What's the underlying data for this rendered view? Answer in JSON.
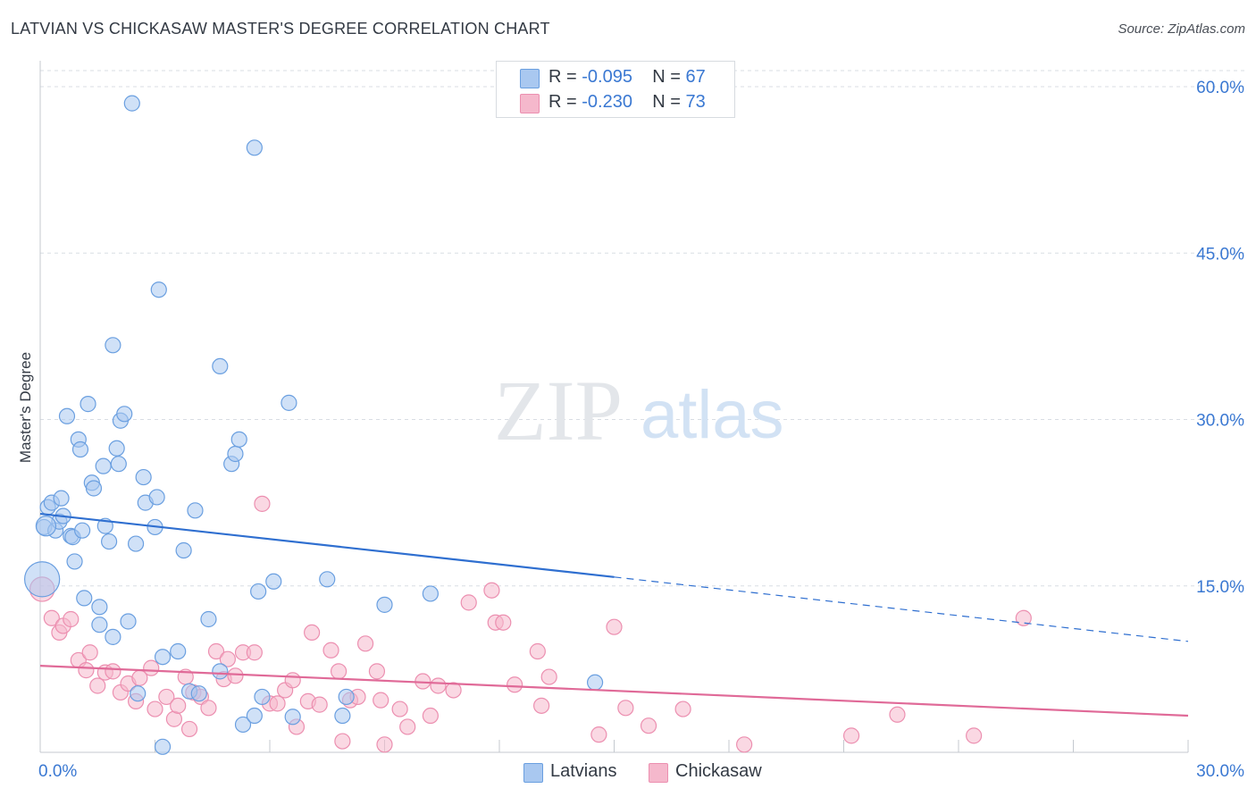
{
  "header": {
    "title": "LATVIAN VS CHICKASAW MASTER'S DEGREE CORRELATION CHART",
    "source": "Source: ZipAtlas.com"
  },
  "legend": {
    "rows": [
      {
        "r_label": "R =",
        "r_value": "-0.095",
        "n_label": "N =",
        "n_value": "67"
      },
      {
        "r_label": "R =",
        "r_value": "-0.230",
        "n_label": "N =",
        "n_value": "73"
      }
    ],
    "series_names": [
      "Latvians",
      "Chickasaw"
    ]
  },
  "watermark": {
    "zip": "ZIP",
    "atlas": "atlas"
  },
  "colors": {
    "latvians_fill": "#a9c8f0",
    "latvians_stroke": "#6a9fe0",
    "latvians_line": "#2f6fd0",
    "chickasaw_fill": "#f5b8cc",
    "chickasaw_stroke": "#ec8fb0",
    "chickasaw_line": "#e06a98",
    "grid": "#d8dde3",
    "axis_text": "#3a78d2"
  },
  "chart_data": {
    "type": "scatter",
    "title": "LATVIAN VS CHICKASAW MASTER'S DEGREE CORRELATION CHART",
    "xlabel": "",
    "ylabel": "Master's Degree",
    "xlim": [
      0,
      30
    ],
    "ylim": [
      0,
      60
    ],
    "x_tick_labels": [
      "0.0%",
      "30.0%"
    ],
    "y_ticks": [
      15,
      30,
      45,
      60
    ],
    "y_tick_labels": [
      "15.0%",
      "30.0%",
      "45.0%",
      "60.0%"
    ],
    "series": [
      {
        "name": "Latvians",
        "r": -0.095,
        "n": 67,
        "trend": {
          "x0": 0,
          "y0": 21.5,
          "x1": 15,
          "y1": 15.8,
          "dashed_to_x": 30,
          "dashed_to_y": 10.0
        },
        "points": [
          [
            0.1,
            20.3
          ],
          [
            0.2,
            22.1
          ],
          [
            0.3,
            22.5
          ],
          [
            0.4,
            20.0
          ],
          [
            0.5,
            20.8
          ],
          [
            0.55,
            22.9
          ],
          [
            0.6,
            21.3
          ],
          [
            0.7,
            30.3
          ],
          [
            0.8,
            19.5
          ],
          [
            0.85,
            19.4
          ],
          [
            0.9,
            17.2
          ],
          [
            1.0,
            28.2
          ],
          [
            1.05,
            27.3
          ],
          [
            1.1,
            20.0
          ],
          [
            1.15,
            13.9
          ],
          [
            1.25,
            31.4
          ],
          [
            1.35,
            24.3
          ],
          [
            1.4,
            23.8
          ],
          [
            1.55,
            11.5
          ],
          [
            1.55,
            13.1
          ],
          [
            1.65,
            25.8
          ],
          [
            1.7,
            20.4
          ],
          [
            1.8,
            19.0
          ],
          [
            1.9,
            10.4
          ],
          [
            1.9,
            36.7
          ],
          [
            2.0,
            27.4
          ],
          [
            2.05,
            26.0
          ],
          [
            2.1,
            29.9
          ],
          [
            2.2,
            30.5
          ],
          [
            2.3,
            11.8
          ],
          [
            2.4,
            58.5
          ],
          [
            2.5,
            18.8
          ],
          [
            2.55,
            5.3
          ],
          [
            2.7,
            24.8
          ],
          [
            2.75,
            22.5
          ],
          [
            3.0,
            20.3
          ],
          [
            3.05,
            23.0
          ],
          [
            3.1,
            41.7
          ],
          [
            3.2,
            8.6
          ],
          [
            3.2,
            0.5
          ],
          [
            3.6,
            9.1
          ],
          [
            3.75,
            18.2
          ],
          [
            3.9,
            5.5
          ],
          [
            4.05,
            21.8
          ],
          [
            4.15,
            5.3
          ],
          [
            4.4,
            12.0
          ],
          [
            4.7,
            34.8
          ],
          [
            4.7,
            7.3
          ],
          [
            5.0,
            26.0
          ],
          [
            5.1,
            26.9
          ],
          [
            5.2,
            28.2
          ],
          [
            5.3,
            2.5
          ],
          [
            5.6,
            54.5
          ],
          [
            5.6,
            3.3
          ],
          [
            5.7,
            14.5
          ],
          [
            5.8,
            5.0
          ],
          [
            6.1,
            15.4
          ],
          [
            6.5,
            31.5
          ],
          [
            6.6,
            3.2
          ],
          [
            7.5,
            15.6
          ],
          [
            7.9,
            3.3
          ],
          [
            8.0,
            5.0
          ],
          [
            9.0,
            13.3
          ],
          [
            10.2,
            14.3
          ],
          [
            14.5,
            6.3
          ],
          [
            0.15,
            20.4
          ],
          [
            0.05,
            15.6
          ]
        ],
        "sizes": [
          1,
          1,
          1,
          1,
          1,
          1,
          1,
          1,
          1,
          1,
          1,
          1,
          1,
          1,
          1,
          1,
          1,
          1,
          1,
          1,
          1,
          1,
          1,
          1,
          1,
          1,
          1,
          1,
          1,
          1,
          1,
          1,
          1,
          1,
          1,
          1,
          1,
          1,
          1,
          1,
          1,
          1,
          1,
          1,
          1,
          1,
          1,
          1,
          1,
          1,
          1,
          1,
          1,
          1,
          1,
          1,
          1,
          1,
          1,
          1,
          1,
          1,
          1,
          1,
          1,
          1.3,
          2.3
        ]
      },
      {
        "name": "Chickasaw",
        "r": -0.23,
        "n": 73,
        "trend": {
          "x0": 0,
          "y0": 7.8,
          "x1": 30,
          "y1": 3.3
        },
        "points": [
          [
            0.05,
            14.7
          ],
          [
            0.3,
            12.1
          ],
          [
            0.5,
            10.8
          ],
          [
            0.6,
            11.4
          ],
          [
            0.8,
            12.0
          ],
          [
            1.0,
            8.3
          ],
          [
            1.2,
            7.4
          ],
          [
            1.3,
            9.0
          ],
          [
            1.5,
            6.0
          ],
          [
            1.7,
            7.2
          ],
          [
            1.9,
            7.3
          ],
          [
            2.1,
            5.4
          ],
          [
            2.3,
            6.2
          ],
          [
            2.5,
            4.6
          ],
          [
            2.6,
            6.7
          ],
          [
            2.9,
            7.6
          ],
          [
            3.0,
            3.9
          ],
          [
            3.3,
            5.0
          ],
          [
            3.5,
            3.0
          ],
          [
            3.6,
            4.2
          ],
          [
            3.8,
            6.8
          ],
          [
            3.9,
            2.1
          ],
          [
            4.0,
            5.4
          ],
          [
            4.2,
            5.0
          ],
          [
            4.4,
            4.0
          ],
          [
            4.6,
            9.1
          ],
          [
            4.8,
            6.6
          ],
          [
            4.9,
            8.4
          ],
          [
            5.1,
            6.9
          ],
          [
            5.3,
            9.0
          ],
          [
            5.6,
            9.0
          ],
          [
            5.8,
            22.4
          ],
          [
            6.0,
            4.4
          ],
          [
            6.2,
            4.4
          ],
          [
            6.4,
            5.6
          ],
          [
            6.6,
            6.5
          ],
          [
            6.7,
            2.3
          ],
          [
            7.0,
            4.6
          ],
          [
            7.1,
            10.8
          ],
          [
            7.3,
            4.3
          ],
          [
            7.6,
            9.2
          ],
          [
            7.8,
            7.3
          ],
          [
            7.9,
            1.0
          ],
          [
            8.1,
            4.7
          ],
          [
            8.3,
            5.0
          ],
          [
            8.5,
            9.8
          ],
          [
            8.8,
            7.3
          ],
          [
            8.9,
            4.7
          ],
          [
            9.0,
            0.7
          ],
          [
            9.4,
            3.9
          ],
          [
            9.6,
            2.3
          ],
          [
            10.0,
            6.4
          ],
          [
            10.2,
            3.3
          ],
          [
            10.4,
            6.0
          ],
          [
            10.8,
            5.6
          ],
          [
            11.2,
            13.5
          ],
          [
            11.8,
            14.6
          ],
          [
            11.9,
            11.7
          ],
          [
            12.1,
            11.7
          ],
          [
            12.4,
            6.1
          ],
          [
            13.0,
            9.1
          ],
          [
            13.1,
            4.2
          ],
          [
            13.3,
            6.8
          ],
          [
            14.6,
            1.6
          ],
          [
            15.0,
            11.3
          ],
          [
            15.3,
            4.0
          ],
          [
            15.9,
            2.4
          ],
          [
            16.8,
            3.9
          ],
          [
            18.4,
            0.7
          ],
          [
            21.2,
            1.5
          ],
          [
            22.4,
            3.4
          ],
          [
            24.4,
            1.5
          ],
          [
            25.7,
            12.1
          ]
        ],
        "sizes": [
          1.6,
          1,
          1,
          1,
          1,
          1,
          1,
          1,
          1,
          1,
          1,
          1,
          1,
          1,
          1,
          1,
          1,
          1,
          1,
          1,
          1,
          1,
          1,
          1,
          1,
          1,
          1,
          1,
          1,
          1,
          1,
          1,
          1,
          1,
          1,
          1,
          1,
          1,
          1,
          1,
          1,
          1,
          1,
          1,
          1,
          1,
          1,
          1,
          1,
          1,
          1,
          1,
          1,
          1,
          1,
          1,
          1,
          1,
          1,
          1,
          1,
          1,
          1,
          1,
          1,
          1,
          1,
          1,
          1,
          1,
          1,
          1,
          1
        ]
      }
    ]
  }
}
